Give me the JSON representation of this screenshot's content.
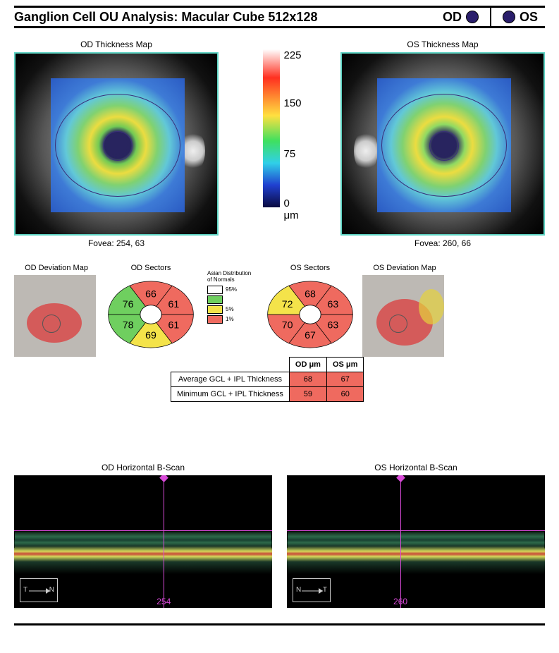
{
  "header": {
    "title": "Ganglion Cell OU Analysis: Macular Cube 512x128",
    "od_label": "OD",
    "os_label": "OS",
    "dot_color": "#2a1e6b"
  },
  "thickness": {
    "od_title": "OD Thickness Map",
    "os_title": "OS Thickness Map",
    "od_fovea": "Fovea: 254, 63",
    "os_fovea": "Fovea: 260, 66",
    "scale": {
      "max": "225",
      "mid_high": "150",
      "mid_low": "75",
      "min": "0 μm"
    }
  },
  "mid": {
    "od_dev_title": "OD Deviation Map",
    "os_dev_title": "OS Deviation Map",
    "od_sectors_title": "OD Sectors",
    "os_sectors_title": "OS Sectors",
    "od_sectors": {
      "top": {
        "v": "66",
        "c": "#ef6a5f"
      },
      "top_right": {
        "v": "61",
        "c": "#ef6a5f"
      },
      "bot_right": {
        "v": "61",
        "c": "#ef6a5f"
      },
      "bottom": {
        "v": "69",
        "c": "#f4e34a"
      },
      "bot_left": {
        "v": "78",
        "c": "#6fcf5f"
      },
      "top_left": {
        "v": "76",
        "c": "#6fcf5f"
      }
    },
    "os_sectors": {
      "top": {
        "v": "68",
        "c": "#ef6a5f"
      },
      "top_right": {
        "v": "63",
        "c": "#ef6a5f"
      },
      "bot_right": {
        "v": "63",
        "c": "#ef6a5f"
      },
      "bottom": {
        "v": "67",
        "c": "#ef6a5f"
      },
      "bot_left": {
        "v": "70",
        "c": "#ef6a5f"
      },
      "top_left": {
        "v": "72",
        "c": "#f4e34a"
      }
    },
    "legend": {
      "title": "Asian Distribution of Normals",
      "r95": {
        "label": "95%",
        "color": "#ffffff"
      },
      "r5": {
        "label": "5%",
        "color": "#f4e34a"
      },
      "r1": {
        "label": "1%",
        "color": "#ef6a5f"
      },
      "green": "#6fcf5f"
    },
    "table": {
      "col_od": "OD μm",
      "col_os": "OS μm",
      "row_avg": "Average GCL + IPL Thickness",
      "row_min": "Minimum GCL + IPL Thickness",
      "avg_od": {
        "v": "68",
        "c": "#ef6a5f"
      },
      "avg_os": {
        "v": "67",
        "c": "#ef6a5f"
      },
      "min_od": {
        "v": "59",
        "c": "#ef6a5f"
      },
      "min_os": {
        "v": "60",
        "c": "#ef6a5f"
      }
    }
  },
  "bscan": {
    "od_title": "OD Horizontal B-Scan",
    "os_title": "OS Horizontal B-Scan",
    "od_marker": "254",
    "os_marker": "260",
    "od_compass": {
      "left": "T",
      "right": "N"
    },
    "os_compass": {
      "left": "N",
      "right": "T"
    }
  }
}
